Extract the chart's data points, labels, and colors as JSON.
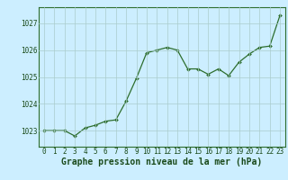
{
  "x": [
    0,
    1,
    2,
    3,
    4,
    5,
    6,
    7,
    8,
    9,
    10,
    11,
    12,
    13,
    14,
    15,
    16,
    17,
    18,
    19,
    20,
    21,
    22,
    23
  ],
  "y": [
    1023.0,
    1023.0,
    1023.0,
    1022.8,
    1023.1,
    1023.2,
    1023.35,
    1023.4,
    1024.1,
    1024.95,
    1025.9,
    1026.0,
    1026.1,
    1026.0,
    1025.3,
    1025.3,
    1025.1,
    1025.3,
    1025.05,
    1025.55,
    1025.85,
    1026.1,
    1026.15,
    1027.3
  ],
  "line_color": "#2d6e2d",
  "marker_color": "#2d6e2d",
  "bg_color": "#cceeff",
  "grid_color": "#aacccc",
  "title": "Graphe pression niveau de la mer (hPa)",
  "yticks": [
    1023,
    1024,
    1025,
    1026,
    1027
  ],
  "xticks": [
    0,
    1,
    2,
    3,
    4,
    5,
    6,
    7,
    8,
    9,
    10,
    11,
    12,
    13,
    14,
    15,
    16,
    17,
    18,
    19,
    20,
    21,
    22,
    23
  ],
  "ylim": [
    1022.4,
    1027.6
  ],
  "xlim": [
    -0.5,
    23.5
  ],
  "tick_fontsize": 5.5,
  "title_fontsize": 7.0,
  "axis_label_color": "#1a4a1a",
  "spine_color": "#2d6e2d"
}
